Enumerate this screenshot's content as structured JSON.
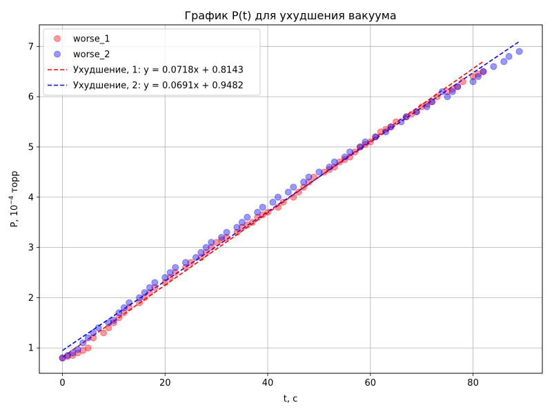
{
  "chart_data": {
    "type": "scatter",
    "title": "График P(t) для ухудшения вакуума",
    "xlabel": "t, c",
    "ylabel_prefix": "P, 10",
    "ylabel_exp": "−4",
    "ylabel_suffix": " торр",
    "xlim": [
      -4.5,
      93.5
    ],
    "ylim": [
      0.495,
      7.43
    ],
    "xticks": [
      0,
      20,
      40,
      60,
      80
    ],
    "yticks": [
      1,
      2,
      3,
      4,
      5,
      6,
      7
    ],
    "grid": true,
    "legend_position": "top-left",
    "series": [
      {
        "name": "worse_1",
        "kind": "scatter",
        "color": "#ff0000",
        "alpha": 0.4,
        "x": [
          0,
          1,
          2,
          3,
          4,
          5,
          6,
          8,
          9,
          10,
          11,
          12,
          13,
          15,
          16,
          17,
          18,
          20,
          21,
          22,
          24,
          25,
          27,
          28,
          29,
          30,
          31,
          32,
          34,
          35,
          36,
          37,
          38,
          39,
          40,
          42,
          43,
          45,
          46,
          47,
          48,
          49,
          51,
          52,
          53,
          54,
          55,
          56,
          57,
          58,
          59,
          60,
          61,
          62,
          63,
          64,
          65,
          67,
          68,
          69,
          70,
          71,
          72,
          73,
          75,
          76,
          77,
          78,
          80,
          81,
          82
        ],
        "y": [
          0.8,
          0.83,
          0.85,
          0.9,
          0.95,
          1.0,
          1.2,
          1.3,
          1.4,
          1.5,
          1.6,
          1.7,
          1.8,
          1.9,
          2.0,
          2.1,
          2.2,
          2.3,
          2.4,
          2.5,
          2.6,
          2.7,
          2.8,
          2.9,
          3.0,
          3.1,
          3.15,
          3.2,
          3.3,
          3.4,
          3.45,
          3.5,
          3.6,
          3.65,
          3.7,
          3.8,
          3.9,
          4.0,
          4.1,
          4.2,
          4.3,
          4.4,
          4.5,
          4.55,
          4.6,
          4.7,
          4.75,
          4.8,
          4.9,
          5.0,
          5.05,
          5.1,
          5.2,
          5.3,
          5.35,
          5.4,
          5.5,
          5.6,
          5.65,
          5.7,
          5.8,
          5.85,
          5.9,
          6.0,
          6.1,
          6.15,
          6.2,
          6.3,
          6.4,
          6.45,
          6.5
        ]
      },
      {
        "name": "worse_2",
        "kind": "scatter",
        "color": "#0000ff",
        "alpha": 0.4,
        "x": [
          0,
          1,
          2,
          3,
          4,
          5,
          6,
          7,
          9,
          10,
          11,
          12,
          13,
          15,
          16,
          17,
          18,
          20,
          21,
          22,
          24,
          26,
          27,
          28,
          29,
          31,
          32,
          34,
          35,
          36,
          38,
          39,
          41,
          42,
          44,
          45,
          47,
          48,
          50,
          52,
          53,
          55,
          56,
          58,
          59,
          61,
          63,
          64,
          66,
          67,
          69,
          71,
          72,
          74,
          75,
          76,
          77,
          80,
          81,
          82,
          84,
          86,
          87,
          89
        ],
        "y": [
          0.8,
          0.85,
          0.9,
          0.97,
          1.1,
          1.2,
          1.3,
          1.4,
          1.5,
          1.55,
          1.7,
          1.8,
          1.9,
          2.0,
          2.1,
          2.2,
          2.3,
          2.4,
          2.5,
          2.6,
          2.7,
          2.8,
          2.9,
          3.0,
          3.1,
          3.2,
          3.3,
          3.4,
          3.5,
          3.6,
          3.7,
          3.8,
          3.9,
          4.0,
          4.1,
          4.2,
          4.3,
          4.4,
          4.5,
          4.6,
          4.7,
          4.8,
          4.9,
          5.0,
          5.1,
          5.2,
          5.3,
          5.4,
          5.5,
          5.6,
          5.7,
          5.8,
          5.9,
          6.1,
          6.0,
          6.1,
          6.2,
          6.3,
          6.4,
          6.5,
          6.6,
          6.7,
          6.8,
          6.9
        ]
      },
      {
        "name": "Ухудшение, 1: y = 0.0718x + 0.8143",
        "kind": "fit",
        "color": "#ff0000",
        "slope": 0.0718,
        "intercept": 0.8143,
        "x_range": [
          0,
          82
        ]
      },
      {
        "name": "Ухудшение, 2: y = 0.0691x + 0.9482",
        "kind": "fit",
        "color": "#0000ff",
        "slope": 0.0691,
        "intercept": 0.9482,
        "x_range": [
          0,
          89
        ]
      }
    ]
  }
}
